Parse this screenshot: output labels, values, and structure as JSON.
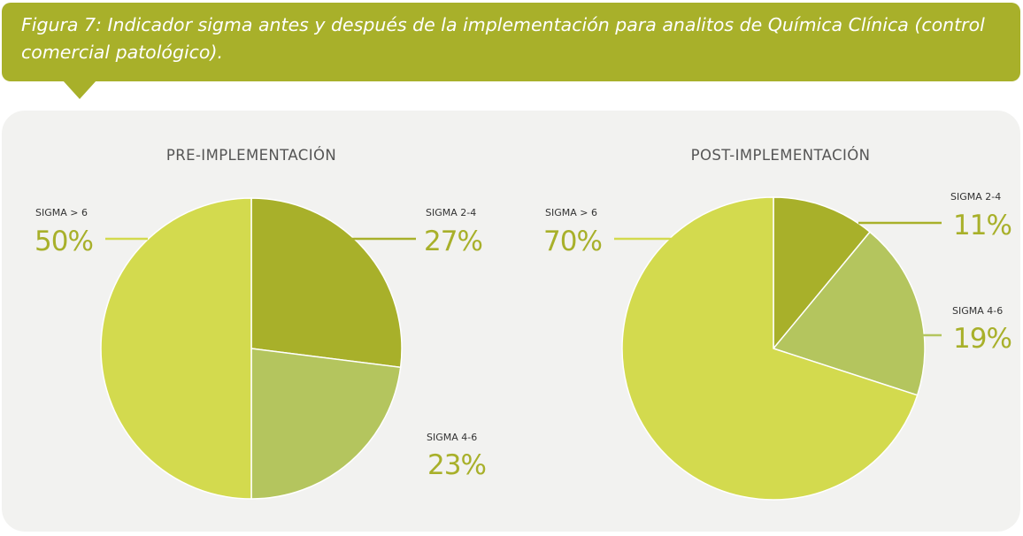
{
  "caption": "Figura 7: Indicador sigma antes y después de la implementación para analitos de Química Clínica (control comercial patológico).",
  "colors": {
    "banner": "#a8b02a",
    "panel": "#f2f2f0",
    "sigma_2_4": "#a8b02a",
    "sigma_4_6": "#b4c55e",
    "sigma_gt_6": "#d3da4e",
    "percent_text": "#a8b02a"
  },
  "chart_data": [
    {
      "type": "pie",
      "title": "PRE-IMPLEMENTACIÓN",
      "slices": [
        {
          "label": "SIGMA 2-4",
          "value": 27,
          "display": "27%",
          "color": "#a8b02a"
        },
        {
          "label": "SIGMA 4-6",
          "value": 23,
          "display": "23%",
          "color": "#b4c55e"
        },
        {
          "label": "SIGMA > 6",
          "value": 50,
          "display": "50%",
          "color": "#d3da4e"
        }
      ],
      "start": "12 o'clock",
      "direction": "clockwise"
    },
    {
      "type": "pie",
      "title": "POST-IMPLEMENTACIÓN",
      "slices": [
        {
          "label": "SIGMA 2-4",
          "value": 11,
          "display": "11%",
          "color": "#a8b02a"
        },
        {
          "label": "SIGMA 4-6",
          "value": 19,
          "display": "19%",
          "color": "#b4c55e"
        },
        {
          "label": "SIGMA > 6",
          "value": 70,
          "display": "70%",
          "color": "#d3da4e"
        }
      ],
      "start": "12 o'clock",
      "direction": "clockwise"
    }
  ]
}
